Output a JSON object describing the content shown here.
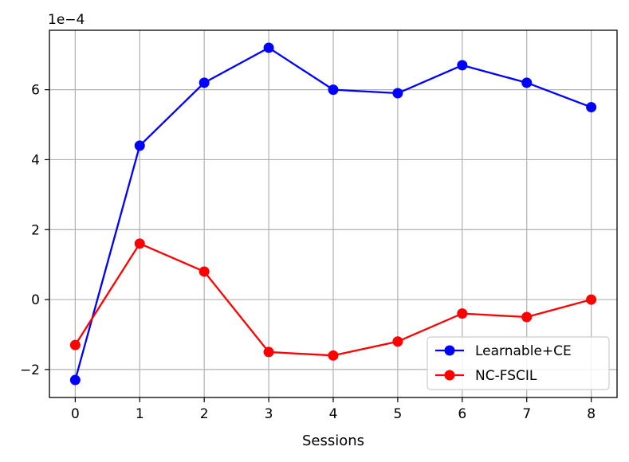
{
  "chart_data": {
    "type": "line",
    "xlabel": "Sessions",
    "ylabel": "",
    "offset_label": "1e−4",
    "x": [
      0,
      1,
      2,
      3,
      4,
      5,
      6,
      7,
      8
    ],
    "xlim": [
      -0.4,
      8.4
    ],
    "ylim": [
      -2.8,
      7.7
    ],
    "x_ticks": [
      0,
      1,
      2,
      3,
      4,
      5,
      6,
      7,
      8
    ],
    "y_ticks": [
      -2,
      0,
      2,
      4,
      6
    ],
    "y_tick_labels": [
      "−2",
      "0",
      "2",
      "4",
      "6"
    ],
    "grid": true,
    "legend_position": "lower-right",
    "series": [
      {
        "name": "Learnable+CE",
        "color": "#0000ff",
        "values": [
          -2.3,
          4.4,
          6.2,
          7.2,
          6.0,
          5.9,
          6.7,
          6.2,
          5.5
        ]
      },
      {
        "name": "NC-FSCIL",
        "color": "#ff0000",
        "values": [
          -1.3,
          1.6,
          0.8,
          -1.5,
          -1.6,
          -1.2,
          -0.4,
          -0.5,
          0.0
        ]
      }
    ]
  }
}
